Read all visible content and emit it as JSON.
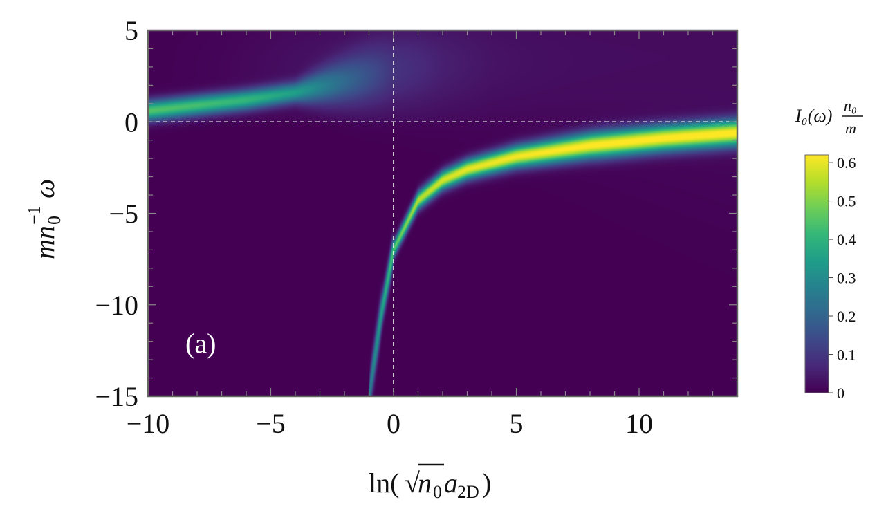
{
  "chart_data": {
    "type": "heatmap",
    "title": "",
    "xlabel": "ln(√n₀a₂D)",
    "ylabel": "mn₀⁻¹ω",
    "xlim": [
      -10,
      14
    ],
    "ylim": [
      -15,
      5
    ],
    "x_ticks": [
      "−10",
      "−5",
      "0",
      "5",
      "10"
    ],
    "x_tick_values": [
      -10,
      -5,
      0,
      5,
      10
    ],
    "y_ticks": [
      "5",
      "0",
      "−5",
      "−10",
      "−15"
    ],
    "y_tick_values": [
      5,
      0,
      -5,
      -10,
      -15
    ],
    "reference_lines": {
      "vertical_x": 0,
      "horizontal_y": 0,
      "style": "dashed",
      "color": "#ffffff"
    },
    "panel_label": "(a)",
    "colorbar": {
      "title": "I₀(ω) n₀/m",
      "title_main": "I₀(ω)",
      "title_num": "n₀",
      "title_den": "m",
      "range": [
        0,
        0.62
      ],
      "ticks": [
        "0",
        "0.1",
        "0.2",
        "0.3",
        "0.4",
        "0.5",
        "0.6"
      ],
      "tick_values": [
        0,
        0.1,
        0.2,
        0.3,
        0.4,
        0.5,
        0.6
      ],
      "colormap": "viridis"
    },
    "features": [
      {
        "name": "upper branch",
        "x": [
          -10,
          -8,
          -6,
          -4,
          -2,
          0,
          2,
          4
        ],
        "y": [
          0.6,
          0.9,
          1.2,
          1.6,
          2.2,
          2.8,
          3.2,
          3.5
        ],
        "peak": [
          0.45,
          0.43,
          0.4,
          0.33,
          0.18,
          0.06,
          0.03,
          0.02
        ]
      },
      {
        "name": "lower branch",
        "x": [
          -1,
          -0.5,
          0,
          1,
          2,
          3,
          5,
          8,
          11,
          14
        ],
        "y": [
          -15,
          -10.5,
          -7,
          -4.3,
          -3.2,
          -2.6,
          -1.9,
          -1.3,
          -0.9,
          -0.6
        ],
        "peak": [
          0.25,
          0.35,
          0.45,
          0.55,
          0.58,
          0.6,
          0.61,
          0.62,
          0.62,
          0.62
        ]
      }
    ],
    "colors": {
      "background": "#440154",
      "axis_frame": "#666666",
      "dashed_line": "#ffffff"
    }
  }
}
